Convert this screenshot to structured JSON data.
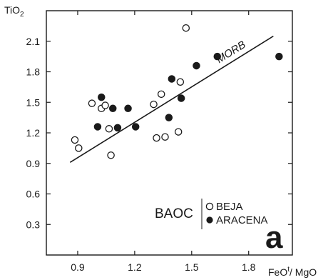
{
  "chart_data": {
    "type": "scatter",
    "xlabel": "FeOt / MgO",
    "ylabel": "TiO2",
    "xlim": [
      0.735,
      2.03
    ],
    "ylim": [
      0.0,
      2.4
    ],
    "xticks": [
      0.9,
      1.2,
      1.5,
      1.8
    ],
    "yticks": [
      0.3,
      0.6,
      0.9,
      1.2,
      1.5,
      1.8,
      2.1
    ],
    "x_tick_labels": [
      "0.9",
      "1.2",
      "1.5",
      "1.8"
    ],
    "y_tick_labels": [
      "0.3",
      "0.6",
      "0.9",
      "1.2",
      "1.5",
      "1.8",
      "2.1"
    ],
    "grid": false,
    "legend_group_label": "BAOC",
    "panel_label": "a",
    "series": [
      {
        "name": "BEJA",
        "marker": "open-circle",
        "x": [
          0.885,
          0.905,
          0.975,
          1.025,
          1.045,
          1.065,
          1.075,
          1.3,
          1.315,
          1.34,
          1.36,
          1.43,
          1.44,
          1.47
        ],
        "y": [
          1.13,
          1.05,
          1.49,
          1.44,
          1.47,
          1.24,
          0.98,
          1.48,
          1.15,
          1.58,
          1.16,
          1.21,
          1.7,
          2.23
        ]
      },
      {
        "name": "ARACENA",
        "marker": "filled-circle",
        "x": [
          1.005,
          1.025,
          1.085,
          1.11,
          1.165,
          1.205,
          1.38,
          1.395,
          1.445,
          1.525,
          1.635,
          1.96
        ],
        "y": [
          1.26,
          1.55,
          1.44,
          1.25,
          1.44,
          1.26,
          1.35,
          1.73,
          1.54,
          1.86,
          1.95,
          1.95
        ]
      }
    ],
    "trend_line": {
      "label": "MORB",
      "x": [
        0.86,
        1.93
      ],
      "y": [
        0.91,
        2.15
      ]
    }
  }
}
